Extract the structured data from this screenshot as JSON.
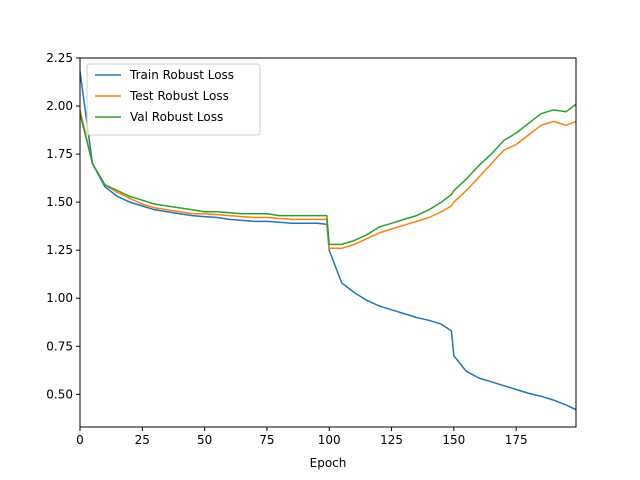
{
  "chart_data": {
    "type": "line",
    "title": "",
    "xlabel": "Epoch",
    "ylabel": "",
    "xlim": [
      0,
      199
    ],
    "ylim": [
      0.33,
      2.25
    ],
    "xticks": [
      0,
      25,
      50,
      75,
      100,
      125,
      150,
      175
    ],
    "yticks": [
      0.5,
      0.75,
      1.0,
      1.25,
      1.5,
      1.75,
      2.0,
      2.25
    ],
    "xtick_labels": [
      "0",
      "25",
      "50",
      "75",
      "100",
      "125",
      "150",
      "175"
    ],
    "ytick_labels": [
      "0.50",
      "0.75",
      "1.00",
      "1.25",
      "1.50",
      "1.75",
      "2.00",
      "2.25"
    ],
    "grid": false,
    "legend_position": "upper-left",
    "x": [
      0,
      5,
      10,
      15,
      20,
      25,
      30,
      35,
      40,
      45,
      50,
      55,
      60,
      65,
      70,
      75,
      80,
      85,
      90,
      95,
      99,
      100,
      105,
      110,
      115,
      120,
      125,
      130,
      135,
      140,
      145,
      149,
      150,
      155,
      160,
      165,
      170,
      175,
      180,
      185,
      190,
      195,
      199
    ],
    "series": [
      {
        "name": "Train Robust Loss",
        "color": "#1f77b4",
        "values": [
          2.18,
          1.7,
          1.58,
          1.53,
          1.5,
          1.48,
          1.46,
          1.45,
          1.44,
          1.43,
          1.425,
          1.42,
          1.41,
          1.405,
          1.4,
          1.4,
          1.395,
          1.39,
          1.39,
          1.39,
          1.385,
          1.25,
          1.08,
          1.03,
          0.99,
          0.96,
          0.94,
          0.92,
          0.9,
          0.885,
          0.865,
          0.83,
          0.7,
          0.62,
          0.585,
          0.565,
          0.545,
          0.525,
          0.505,
          0.49,
          0.47,
          0.445,
          0.42
        ]
      },
      {
        "name": "Test Robust Loss",
        "color": "#ff7f0e",
        "values": [
          1.98,
          1.7,
          1.59,
          1.55,
          1.52,
          1.49,
          1.47,
          1.46,
          1.45,
          1.44,
          1.44,
          1.435,
          1.43,
          1.425,
          1.42,
          1.42,
          1.415,
          1.41,
          1.41,
          1.41,
          1.41,
          1.26,
          1.26,
          1.28,
          1.31,
          1.34,
          1.36,
          1.38,
          1.4,
          1.42,
          1.45,
          1.48,
          1.5,
          1.56,
          1.63,
          1.7,
          1.77,
          1.8,
          1.85,
          1.9,
          1.92,
          1.9,
          1.92
        ]
      },
      {
        "name": "Val Robust Loss",
        "color": "#2ca02c",
        "values": [
          1.96,
          1.7,
          1.59,
          1.56,
          1.53,
          1.51,
          1.49,
          1.48,
          1.47,
          1.46,
          1.45,
          1.45,
          1.445,
          1.44,
          1.44,
          1.44,
          1.43,
          1.43,
          1.43,
          1.43,
          1.43,
          1.28,
          1.28,
          1.3,
          1.33,
          1.37,
          1.39,
          1.41,
          1.43,
          1.46,
          1.5,
          1.54,
          1.56,
          1.62,
          1.69,
          1.75,
          1.82,
          1.86,
          1.91,
          1.96,
          1.98,
          1.97,
          2.01
        ]
      }
    ]
  }
}
